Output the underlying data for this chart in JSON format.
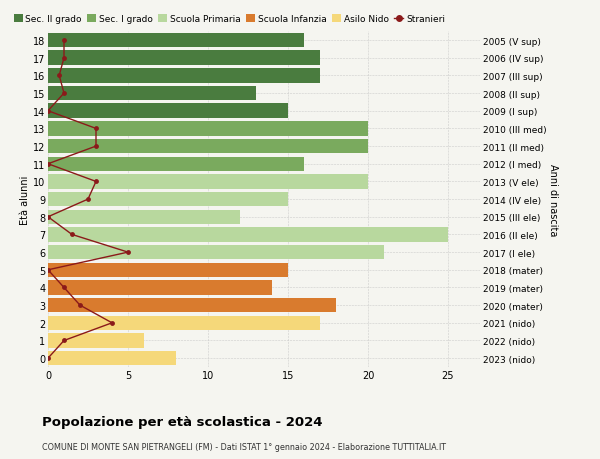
{
  "ages": [
    18,
    17,
    16,
    15,
    14,
    13,
    12,
    11,
    10,
    9,
    8,
    7,
    6,
    5,
    4,
    3,
    2,
    1,
    0
  ],
  "bar_values": [
    16,
    17,
    17,
    13,
    15,
    20,
    20,
    16,
    20,
    15,
    12,
    25,
    21,
    15,
    14,
    18,
    17,
    6,
    8
  ],
  "bar_colors": [
    "#4a7c3f",
    "#4a7c3f",
    "#4a7c3f",
    "#4a7c3f",
    "#4a7c3f",
    "#7aaa5e",
    "#7aaa5e",
    "#7aaa5e",
    "#b8d89e",
    "#b8d89e",
    "#b8d89e",
    "#b8d89e",
    "#b8d89e",
    "#d97b2e",
    "#d97b2e",
    "#d97b2e",
    "#f5d87a",
    "#f5d87a",
    "#f5d87a"
  ],
  "stranieri_values": [
    1,
    1,
    0.7,
    1,
    0,
    3,
    3,
    0,
    3,
    2.5,
    0,
    1.5,
    5,
    0,
    1,
    2,
    4,
    1,
    0
  ],
  "right_labels": [
    "2005 (V sup)",
    "2006 (IV sup)",
    "2007 (III sup)",
    "2008 (II sup)",
    "2009 (I sup)",
    "2010 (III med)",
    "2011 (II med)",
    "2012 (I med)",
    "2013 (V ele)",
    "2014 (IV ele)",
    "2015 (III ele)",
    "2016 (II ele)",
    "2017 (I ele)",
    "2018 (mater)",
    "2019 (mater)",
    "2020 (mater)",
    "2021 (nido)",
    "2022 (nido)",
    "2023 (nido)"
  ],
  "title": "Popolazione per età scolastica - 2024",
  "subtitle": "COMUNE DI MONTE SAN PIETRANGELI (FM) - Dati ISTAT 1° gennaio 2024 - Elaborazione TUTTITALIA.IT",
  "ylabel": "Età alunni",
  "right_ylabel": "Anni di nascita",
  "xlim": [
    0,
    27
  ],
  "xticks": [
    0,
    5,
    10,
    15,
    20,
    25
  ],
  "legend_items": [
    {
      "label": "Sec. II grado",
      "color": "#4a7c3f",
      "type": "patch"
    },
    {
      "label": "Sec. I grado",
      "color": "#7aaa5e",
      "type": "patch"
    },
    {
      "label": "Scuola Primaria",
      "color": "#b8d89e",
      "type": "patch"
    },
    {
      "label": "Scuola Infanzia",
      "color": "#d97b2e",
      "type": "patch"
    },
    {
      "label": "Asilo Nido",
      "color": "#f5d87a",
      "type": "patch"
    },
    {
      "label": "Stranieri",
      "color": "#8b1a1a",
      "type": "line"
    }
  ],
  "background_color": "#f5f5f0",
  "grid_color": "#cccccc",
  "stranieri_color": "#8b1a1a"
}
